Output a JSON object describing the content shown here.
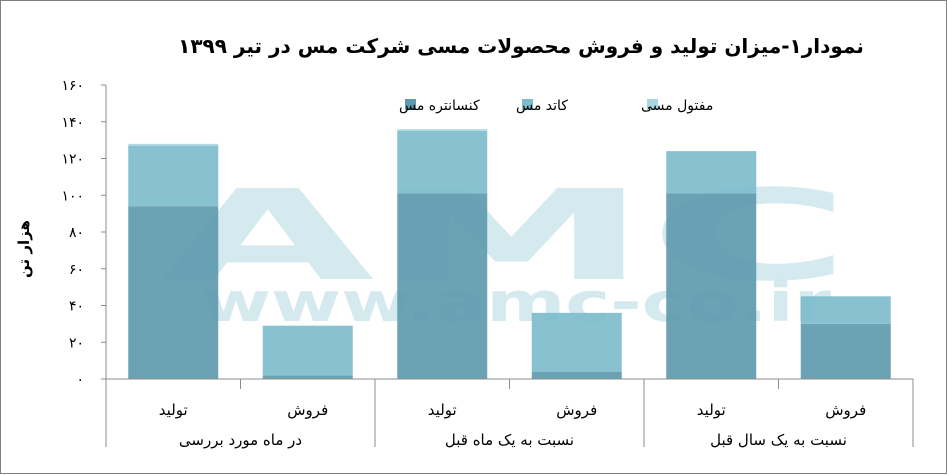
{
  "chart_data": {
    "type": "bar",
    "stacked": true,
    "title": "نمودار۱-میزان تولید و فروش محصولات مسی شرکت مس در تیر ۱۳۹۹",
    "ylabel": "هزار تن",
    "ylim": [
      0,
      160
    ],
    "yticks": [
      {
        "value": 0,
        "label": "۰"
      },
      {
        "value": 20,
        "label": "۲۰"
      },
      {
        "value": 40,
        "label": "۴۰"
      },
      {
        "value": 60,
        "label": "۶۰"
      },
      {
        "value": 80,
        "label": "۸۰"
      },
      {
        "value": 100,
        "label": "۱۰۰"
      },
      {
        "value": 120,
        "label": "۱۲۰"
      },
      {
        "value": 140,
        "label": "۱۴۰"
      },
      {
        "value": 160,
        "label": "۱۶۰"
      }
    ],
    "categories": [
      "تولید",
      "فروش",
      "تولید",
      "فروش",
      "تولید",
      "فروش"
    ],
    "groups": [
      {
        "label": "در ماه مورد بررسی",
        "span": [
          0,
          1
        ]
      },
      {
        "label": "نسبت به یک ماه قبل",
        "span": [
          2,
          3
        ]
      },
      {
        "label": "نسبت به یک سال قبل",
        "span": [
          4,
          5
        ]
      }
    ],
    "series": [
      {
        "name": "کنسانتره مس",
        "color": "#5e9aae",
        "values": [
          94,
          2,
          101,
          4,
          101,
          30
        ]
      },
      {
        "name": "کاتد مس",
        "color": "#7ebccc",
        "values": [
          33,
          27,
          34,
          32,
          23,
          15
        ]
      },
      {
        "name": "مفتول مسی",
        "color": "#a9d7e1",
        "values": [
          1,
          0,
          1,
          0,
          0,
          0
        ]
      }
    ],
    "legend": "top-right",
    "grid": false
  },
  "watermark": {
    "logo": "AMC",
    "url": "www.amc-co.ir"
  }
}
